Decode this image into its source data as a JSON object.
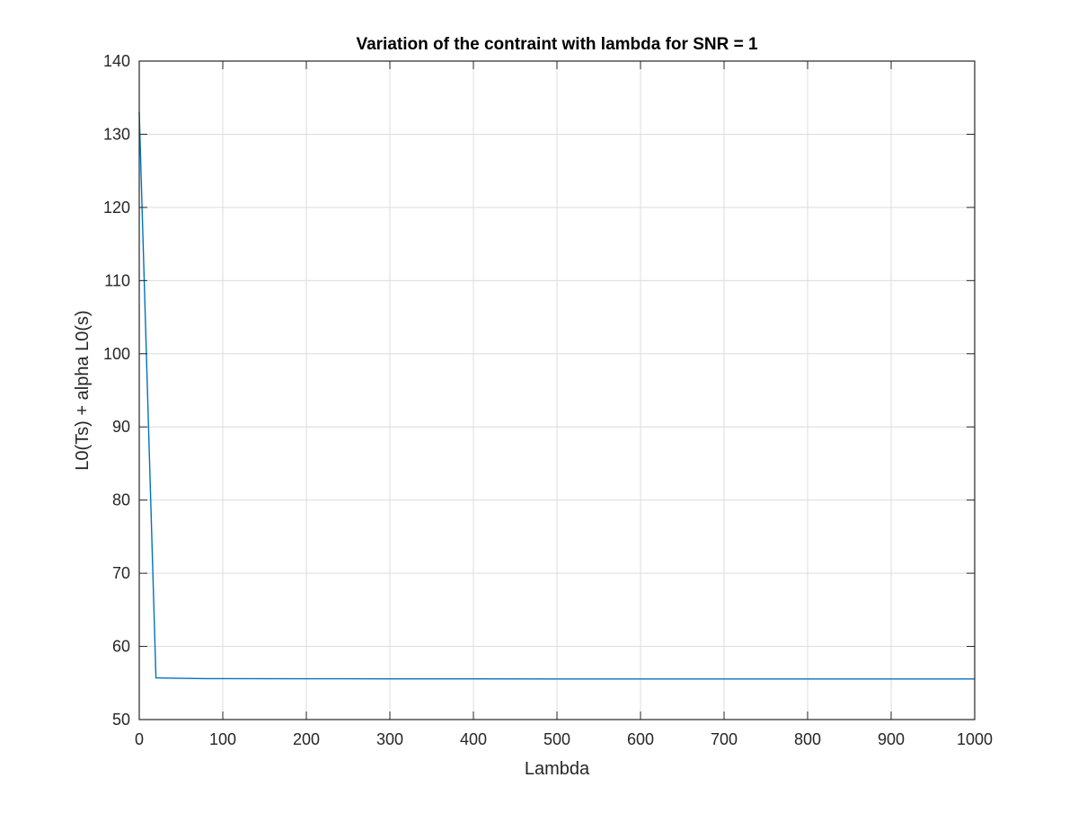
{
  "chart_data": {
    "type": "line",
    "title": "Variation of the contraint with lambda for SNR = 1",
    "xlabel": "Lambda",
    "ylabel": "L0(Ts) + alpha L0(s)",
    "xlim": [
      0,
      1000
    ],
    "ylim": [
      50,
      140
    ],
    "xticks": [
      0,
      100,
      200,
      300,
      400,
      500,
      600,
      700,
      800,
      900,
      1000
    ],
    "yticks": [
      50,
      60,
      70,
      80,
      90,
      100,
      110,
      120,
      130,
      140
    ],
    "grid": true,
    "series": [
      {
        "color": "#0072BD",
        "x": [
          0,
          20,
          40,
          60,
          80,
          100,
          200,
          300,
          400,
          500,
          600,
          700,
          800,
          900,
          1000
        ],
        "y": [
          133.0,
          55.7,
          55.65,
          55.62,
          55.6,
          55.6,
          55.58,
          55.57,
          55.56,
          55.55,
          55.55,
          55.55,
          55.55,
          55.55,
          55.55
        ]
      }
    ]
  }
}
